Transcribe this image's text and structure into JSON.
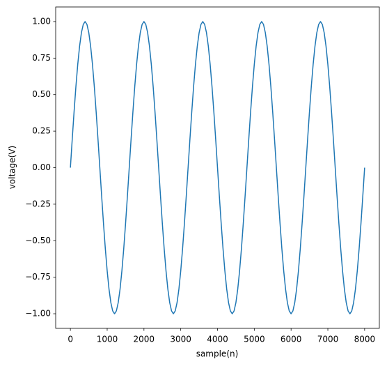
{
  "chart_data": {
    "type": "line",
    "x_label": "sample(n)",
    "y_label": "voltage(V)",
    "color": "#1f77b4",
    "x": [
      0,
      50,
      100,
      150,
      200,
      250,
      300,
      350,
      400,
      450,
      500,
      550,
      600,
      650,
      700,
      750,
      800,
      850,
      900,
      950,
      1000,
      1050,
      1100,
      1150,
      1200,
      1250,
      1300,
      1350,
      1400,
      1450,
      1500,
      1550,
      1600,
      1650,
      1700,
      1750,
      1800,
      1850,
      1900,
      1950,
      2000,
      2050,
      2100,
      2150,
      2200,
      2250,
      2300,
      2350,
      2400,
      2450,
      2500,
      2550,
      2600,
      2650,
      2700,
      2750,
      2800,
      2850,
      2900,
      2950,
      3000,
      3050,
      3100,
      3150,
      3200,
      3250,
      3300,
      3350,
      3400,
      3450,
      3500,
      3550,
      3600,
      3650,
      3700,
      3750,
      3800,
      3850,
      3900,
      3950,
      4000,
      4050,
      4100,
      4150,
      4200,
      4250,
      4300,
      4350,
      4400,
      4450,
      4500,
      4550,
      4600,
      4650,
      4700,
      4750,
      4800,
      4850,
      4900,
      4950,
      5000,
      5050,
      5100,
      5150,
      5200,
      5250,
      5300,
      5350,
      5400,
      5450,
      5500,
      5550,
      5600,
      5650,
      5700,
      5750,
      5800,
      5850,
      5900,
      5950,
      6000,
      6050,
      6100,
      6150,
      6200,
      6250,
      6300,
      6350,
      6400,
      6450,
      6500,
      6550,
      6600,
      6650,
      6700,
      6750,
      6800,
      6850,
      6900,
      6950,
      7000,
      7050,
      7100,
      7150,
      7200,
      7250,
      7300,
      7350,
      7400,
      7450,
      7500,
      7550,
      7600,
      7650,
      7700,
      7750,
      7800,
      7850,
      7900,
      7950,
      8000
    ],
    "values": [
      0,
      0.1951,
      0.3827,
      0.5556,
      0.7071,
      0.8315,
      0.9239,
      0.9808,
      1,
      0.9808,
      0.9239,
      0.8315,
      0.7071,
      0.5556,
      0.3827,
      0.1951,
      0,
      -0.1951,
      -0.3827,
      -0.5556,
      -0.7071,
      -0.8315,
      -0.9239,
      -0.9808,
      -1,
      -0.9808,
      -0.9239,
      -0.8315,
      -0.7071,
      -0.5556,
      -0.3827,
      -0.1951,
      0,
      0.1951,
      0.3827,
      0.5556,
      0.7071,
      0.8315,
      0.9239,
      0.9808,
      1,
      0.9808,
      0.9239,
      0.8315,
      0.7071,
      0.5556,
      0.3827,
      0.1951,
      0,
      -0.1951,
      -0.3827,
      -0.5556,
      -0.7071,
      -0.8315,
      -0.9239,
      -0.9808,
      -1,
      -0.9808,
      -0.9239,
      -0.8315,
      -0.7071,
      -0.5556,
      -0.3827,
      -0.1951,
      0,
      0.1951,
      0.3827,
      0.5556,
      0.7071,
      0.8315,
      0.9239,
      0.9808,
      1,
      0.9808,
      0.9239,
      0.8315,
      0.7071,
      0.5556,
      0.3827,
      0.1951,
      0,
      -0.1951,
      -0.3827,
      -0.5556,
      -0.7071,
      -0.8315,
      -0.9239,
      -0.9808,
      -1,
      -0.9808,
      -0.9239,
      -0.8315,
      -0.7071,
      -0.5556,
      -0.3827,
      -0.1951,
      0,
      0.1951,
      0.3827,
      0.5556,
      0.7071,
      0.8315,
      0.9239,
      0.9808,
      1,
      0.9808,
      0.9239,
      0.8315,
      0.7071,
      0.5556,
      0.3827,
      0.1951,
      0,
      -0.1951,
      -0.3827,
      -0.5556,
      -0.7071,
      -0.8315,
      -0.9239,
      -0.9808,
      -1,
      -0.9808,
      -0.9239,
      -0.8315,
      -0.7071,
      -0.5556,
      -0.3827,
      -0.1951,
      0,
      0.1951,
      0.3827,
      0.5556,
      0.7071,
      0.8315,
      0.9239,
      0.9808,
      1,
      0.9808,
      0.9239,
      0.8315,
      0.7071,
      0.5556,
      0.3827,
      0.1951,
      0,
      -0.1951,
      -0.3827,
      -0.5556,
      -0.7071,
      -0.8315,
      -0.9239,
      -0.9808,
      -1,
      -0.9808,
      -0.9239,
      -0.8315,
      -0.7071,
      -0.5556,
      -0.3827,
      -0.1951,
      0
    ],
    "xlim": [
      -400,
      8400
    ],
    "ylim": [
      -1.1,
      1.1
    ],
    "xticks": [
      0,
      1000,
      2000,
      3000,
      4000,
      5000,
      6000,
      7000,
      8000
    ],
    "yticks": [
      {
        "value": -1,
        "label": "−1.00"
      },
      {
        "value": -0.75,
        "label": "−0.75"
      },
      {
        "value": -0.5,
        "label": "−0.50"
      },
      {
        "value": -0.25,
        "label": "−0.25"
      },
      {
        "value": 0,
        "label": "0.00"
      },
      {
        "value": 0.25,
        "label": "0.25"
      },
      {
        "value": 0.5,
        "label": "0.50"
      },
      {
        "value": 0.75,
        "label": "0.75"
      },
      {
        "value": 1,
        "label": "1.00"
      }
    ],
    "grid": false
  }
}
